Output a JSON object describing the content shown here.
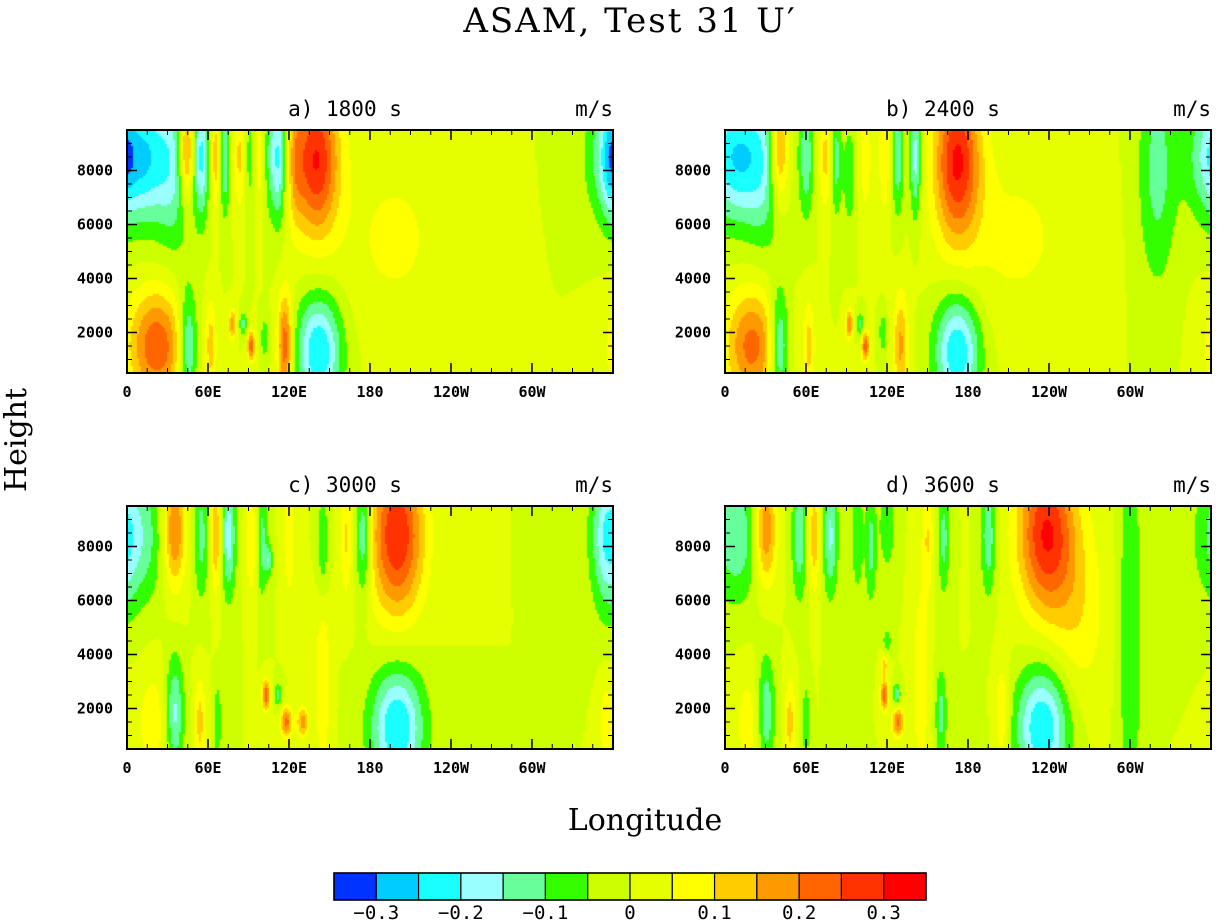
{
  "chart_data": {
    "type": "heatmap",
    "title": "ASAM, Test 31 U′",
    "xlabel": "Longitude",
    "ylabel": "Height",
    "units": "m/s",
    "x_ticks": [
      "0",
      "60E",
      "120E",
      "180",
      "120W",
      "60W"
    ],
    "x_tick_degrees_east": [
      0,
      60,
      120,
      180,
      240,
      300
    ],
    "xlim_degrees_east": [
      0,
      360
    ],
    "y_ticks": [
      "2000",
      "4000",
      "6000",
      "8000"
    ],
    "y_tick_values": [
      2000,
      4000,
      6000,
      8000
    ],
    "ylim": [
      500,
      9500
    ],
    "contour_levels": [
      -0.35,
      -0.3,
      -0.25,
      -0.2,
      -0.15,
      -0.1,
      -0.05,
      0,
      0.05,
      0.1,
      0.15,
      0.2,
      0.25,
      0.3,
      0.35
    ],
    "colorbar": {
      "colors": [
        "#0033ff",
        "#00ccff",
        "#19ffff",
        "#99ffff",
        "#66ff99",
        "#33ff00",
        "#ccff00",
        "#e6ff00",
        "#ffff00",
        "#ffcc00",
        "#ff9900",
        "#ff6600",
        "#ff3300",
        "#ff0000"
      ],
      "labels": [
        "−0.3",
        "−0.2",
        "−0.1",
        "0",
        "0.1",
        "0.2",
        "0.3"
      ],
      "label_values": [
        -0.3,
        -0.2,
        -0.1,
        0,
        0.1,
        0.2,
        0.3
      ]
    },
    "panels": [
      {
        "id": "a",
        "title": "a) 1800 s",
        "units": "m/s",
        "features": [
          {
            "lon": 8,
            "z": 8500,
            "amp": -0.27,
            "sx": 16,
            "sz": 1700
          },
          {
            "lon": 35,
            "z": 8000,
            "amp": -0.12,
            "sx": 10,
            "sz": 2200
          },
          {
            "lon": 44,
            "z": 8700,
            "amp": 0.25,
            "sx": 4,
            "sz": 1300
          },
          {
            "lon": 55,
            "z": 8500,
            "amp": -0.2,
            "sx": 4,
            "sz": 1600
          },
          {
            "lon": 66,
            "z": 8500,
            "amp": 0.15,
            "sx": 3,
            "sz": 1400
          },
          {
            "lon": 72,
            "z": 8500,
            "amp": -0.17,
            "sx": 3,
            "sz": 1500
          },
          {
            "lon": 84,
            "z": 8500,
            "amp": 0.12,
            "sx": 4,
            "sz": 1400
          },
          {
            "lon": 90,
            "z": 8500,
            "amp": -0.1,
            "sx": 3,
            "sz": 1500
          },
          {
            "lon": 98,
            "z": 8500,
            "amp": 0.08,
            "sx": 3,
            "sz": 1400
          },
          {
            "lon": 105,
            "z": 8500,
            "amp": -0.08,
            "sx": 3,
            "sz": 1500
          },
          {
            "lon": 112,
            "z": 8500,
            "amp": -0.22,
            "sx": 4,
            "sz": 1700
          },
          {
            "lon": 125,
            "z": 8300,
            "amp": 0.08,
            "sx": 4,
            "sz": 1700
          },
          {
            "lon": 140,
            "z": 8400,
            "amp": 0.3,
            "sx": 12,
            "sz": 2000
          },
          {
            "lon": 22,
            "z": 1500,
            "amp": 0.24,
            "sx": 15,
            "sz": 1500
          },
          {
            "lon": 45,
            "z": 1500,
            "amp": -0.2,
            "sx": 5,
            "sz": 1500
          },
          {
            "lon": 62,
            "z": 1500,
            "amp": 0.12,
            "sx": 3,
            "sz": 1200
          },
          {
            "lon": 78,
            "z": 2300,
            "amp": 0.18,
            "sx": 2,
            "sz": 400
          },
          {
            "lon": 86,
            "z": 2300,
            "amp": -0.12,
            "sx": 2,
            "sz": 300
          },
          {
            "lon": 92,
            "z": 1500,
            "amp": 0.24,
            "sx": 2,
            "sz": 400
          },
          {
            "lon": 102,
            "z": 1800,
            "amp": -0.1,
            "sx": 2,
            "sz": 500
          },
          {
            "lon": 117,
            "z": 1500,
            "amp": 0.25,
            "sx": 4,
            "sz": 1400
          },
          {
            "lon": 142,
            "z": 1300,
            "amp": -0.25,
            "sx": 12,
            "sz": 1500
          },
          {
            "lon": 198,
            "z": 5500,
            "amp": 0.06,
            "sx": 30,
            "sz": 2500
          },
          {
            "lon": 358,
            "z": 8500,
            "amp": -0.09,
            "sx": 5,
            "sz": 1500
          }
        ]
      },
      {
        "id": "b",
        "title": "b) 2400 s",
        "units": "m/s",
        "features": [
          {
            "lon": 8,
            "z": 8500,
            "amp": -0.25,
            "sx": 16,
            "sz": 1700
          },
          {
            "lon": 30,
            "z": 8000,
            "amp": -0.1,
            "sx": 10,
            "sz": 2200
          },
          {
            "lon": 40,
            "z": 8700,
            "amp": 0.22,
            "sx": 5,
            "sz": 1400
          },
          {
            "lon": 60,
            "z": 8500,
            "amp": -0.14,
            "sx": 4,
            "sz": 1600
          },
          {
            "lon": 75,
            "z": 8500,
            "amp": 0.12,
            "sx": 4,
            "sz": 1400
          },
          {
            "lon": 82,
            "z": 8400,
            "amp": -0.14,
            "sx": 3,
            "sz": 1500
          },
          {
            "lon": 92,
            "z": 7800,
            "amp": -0.1,
            "sx": 3,
            "sz": 1300
          },
          {
            "lon": 104,
            "z": 8500,
            "amp": 0.1,
            "sx": 3,
            "sz": 1400
          },
          {
            "lon": 118,
            "z": 8500,
            "amp": 0.1,
            "sx": 3,
            "sz": 1500
          },
          {
            "lon": 128,
            "z": 8500,
            "amp": -0.14,
            "sx": 3,
            "sz": 1600
          },
          {
            "lon": 141,
            "z": 8500,
            "amp": -0.18,
            "sx": 3,
            "sz": 1600
          },
          {
            "lon": 172,
            "z": 8400,
            "amp": 0.3,
            "sx": 12,
            "sz": 2100
          },
          {
            "lon": 20,
            "z": 1500,
            "amp": 0.22,
            "sx": 14,
            "sz": 1500
          },
          {
            "lon": 40,
            "z": 1500,
            "amp": -0.2,
            "sx": 5,
            "sz": 1500
          },
          {
            "lon": 62,
            "z": 1500,
            "amp": 0.12,
            "sx": 3,
            "sz": 1200
          },
          {
            "lon": 92,
            "z": 2300,
            "amp": 0.2,
            "sx": 2,
            "sz": 400
          },
          {
            "lon": 100,
            "z": 2300,
            "amp": -0.12,
            "sx": 2,
            "sz": 300
          },
          {
            "lon": 104,
            "z": 1500,
            "amp": 0.24,
            "sx": 2,
            "sz": 400
          },
          {
            "lon": 117,
            "z": 2000,
            "amp": -0.1,
            "sx": 2,
            "sz": 500
          },
          {
            "lon": 130,
            "z": 1500,
            "amp": 0.16,
            "sx": 4,
            "sz": 1400
          },
          {
            "lon": 172,
            "z": 1300,
            "amp": -0.25,
            "sx": 12,
            "sz": 1500
          },
          {
            "lon": 215,
            "z": 5500,
            "amp": 0.06,
            "sx": 35,
            "sz": 2500
          },
          {
            "lon": 320,
            "z": 8000,
            "amp": -0.12,
            "sx": 10,
            "sz": 3000
          }
        ]
      },
      {
        "id": "c",
        "title": "c) 3000 s",
        "units": "m/s",
        "features": [
          {
            "lon": 8,
            "z": 8400,
            "amp": -0.14,
            "sx": 14,
            "sz": 1800
          },
          {
            "lon": 35,
            "z": 8600,
            "amp": 0.22,
            "sx": 6,
            "sz": 1500
          },
          {
            "lon": 55,
            "z": 8400,
            "amp": -0.12,
            "sx": 4,
            "sz": 1700
          },
          {
            "lon": 66,
            "z": 8400,
            "amp": 0.16,
            "sx": 3,
            "sz": 1500
          },
          {
            "lon": 75,
            "z": 8400,
            "amp": -0.18,
            "sx": 4,
            "sz": 1600
          },
          {
            "lon": 92,
            "z": 8200,
            "amp": 0.1,
            "sx": 3,
            "sz": 1500
          },
          {
            "lon": 100,
            "z": 8200,
            "amp": -0.12,
            "sx": 3,
            "sz": 1500
          },
          {
            "lon": 105,
            "z": 7500,
            "amp": -0.12,
            "sx": 2,
            "sz": 400
          },
          {
            "lon": 120,
            "z": 8300,
            "amp": 0.1,
            "sx": 3,
            "sz": 1500
          },
          {
            "lon": 145,
            "z": 8000,
            "amp": -0.1,
            "sx": 3,
            "sz": 1500
          },
          {
            "lon": 162,
            "z": 8300,
            "amp": 0.1,
            "sx": 3,
            "sz": 1500
          },
          {
            "lon": 175,
            "z": 8400,
            "amp": -0.18,
            "sx": 4,
            "sz": 1600
          },
          {
            "lon": 200,
            "z": 8400,
            "amp": 0.3,
            "sx": 14,
            "sz": 2100
          },
          {
            "lon": 20,
            "z": 1500,
            "amp": 0.08,
            "sx": 10,
            "sz": 1500
          },
          {
            "lon": 35,
            "z": 1800,
            "amp": -0.18,
            "sx": 5,
            "sz": 1500
          },
          {
            "lon": 54,
            "z": 1500,
            "amp": 0.12,
            "sx": 3,
            "sz": 1200
          },
          {
            "lon": 67,
            "z": 1500,
            "amp": -0.1,
            "sx": 2,
            "sz": 1000
          },
          {
            "lon": 103,
            "z": 2500,
            "amp": 0.25,
            "sx": 2,
            "sz": 400
          },
          {
            "lon": 112,
            "z": 2500,
            "amp": -0.12,
            "sx": 2,
            "sz": 300
          },
          {
            "lon": 118,
            "z": 1500,
            "amp": 0.22,
            "sx": 3,
            "sz": 400
          },
          {
            "lon": 130,
            "z": 1500,
            "amp": 0.18,
            "sx": 3,
            "sz": 400
          },
          {
            "lon": 145,
            "z": 3000,
            "amp": 0.1,
            "sx": 4,
            "sz": 2500
          },
          {
            "lon": 200,
            "z": 1300,
            "amp": -0.25,
            "sx": 14,
            "sz": 1600
          },
          {
            "lon": 355,
            "z": 8300,
            "amp": -0.13,
            "sx": 8,
            "sz": 2000
          },
          {
            "lon": 355,
            "z": 1500,
            "amp": 0.08,
            "sx": 4,
            "sz": 1200
          }
        ]
      },
      {
        "id": "d",
        "title": "d) 3600 s",
        "units": "m/s",
        "features": [
          {
            "lon": 8,
            "z": 8400,
            "amp": -0.14,
            "sx": 14,
            "sz": 1800
          },
          {
            "lon": 30,
            "z": 8600,
            "amp": 0.22,
            "sx": 6,
            "sz": 1500
          },
          {
            "lon": 55,
            "z": 8400,
            "amp": -0.14,
            "sx": 4,
            "sz": 1700
          },
          {
            "lon": 66,
            "z": 8400,
            "amp": 0.14,
            "sx": 3,
            "sz": 1500
          },
          {
            "lon": 78,
            "z": 8400,
            "amp": -0.16,
            "sx": 4,
            "sz": 1600
          },
          {
            "lon": 98,
            "z": 8400,
            "amp": -0.1,
            "sx": 3,
            "sz": 1500
          },
          {
            "lon": 108,
            "z": 8000,
            "amp": -0.12,
            "sx": 3,
            "sz": 1500
          },
          {
            "lon": 120,
            "z": 8800,
            "amp": -0.1,
            "sx": 4,
            "sz": 1200
          },
          {
            "lon": 150,
            "z": 8300,
            "amp": 0.1,
            "sx": 3,
            "sz": 1500
          },
          {
            "lon": 162,
            "z": 8300,
            "amp": -0.12,
            "sx": 3,
            "sz": 1500
          },
          {
            "lon": 195,
            "z": 8400,
            "amp": -0.14,
            "sx": 4,
            "sz": 1600
          },
          {
            "lon": 238,
            "z": 8500,
            "amp": 0.3,
            "sx": 15,
            "sz": 2100
          },
          {
            "lon": 262,
            "z": 5500,
            "amp": 0.08,
            "sx": 15,
            "sz": 2500
          },
          {
            "lon": 300,
            "z": 5000,
            "amp": -0.1,
            "sx": 6,
            "sz": 6000
          },
          {
            "lon": 20,
            "z": 1500,
            "amp": 0.08,
            "sx": 10,
            "sz": 1500
          },
          {
            "lon": 30,
            "z": 1800,
            "amp": -0.18,
            "sx": 5,
            "sz": 1500
          },
          {
            "lon": 48,
            "z": 1500,
            "amp": 0.12,
            "sx": 3,
            "sz": 1200
          },
          {
            "lon": 60,
            "z": 1500,
            "amp": -0.1,
            "sx": 2,
            "sz": 1000
          },
          {
            "lon": 118,
            "z": 2500,
            "amp": 0.24,
            "sx": 2,
            "sz": 400
          },
          {
            "lon": 127,
            "z": 2500,
            "amp": -0.14,
            "sx": 2,
            "sz": 300
          },
          {
            "lon": 128,
            "z": 1500,
            "amp": 0.22,
            "sx": 3,
            "sz": 400
          },
          {
            "lon": 118,
            "z": 3600,
            "amp": 0.12,
            "sx": 2,
            "sz": 300
          },
          {
            "lon": 120,
            "z": 4500,
            "amp": -0.1,
            "sx": 2,
            "sz": 300
          },
          {
            "lon": 145,
            "z": 3000,
            "amp": 0.1,
            "sx": 4,
            "sz": 2500
          },
          {
            "lon": 160,
            "z": 1800,
            "amp": -0.12,
            "sx": 3,
            "sz": 1200
          },
          {
            "lon": 205,
            "z": 1800,
            "amp": 0.1,
            "sx": 4,
            "sz": 1500
          },
          {
            "lon": 235,
            "z": 1300,
            "amp": -0.25,
            "sx": 14,
            "sz": 1600
          }
        ]
      }
    ]
  }
}
